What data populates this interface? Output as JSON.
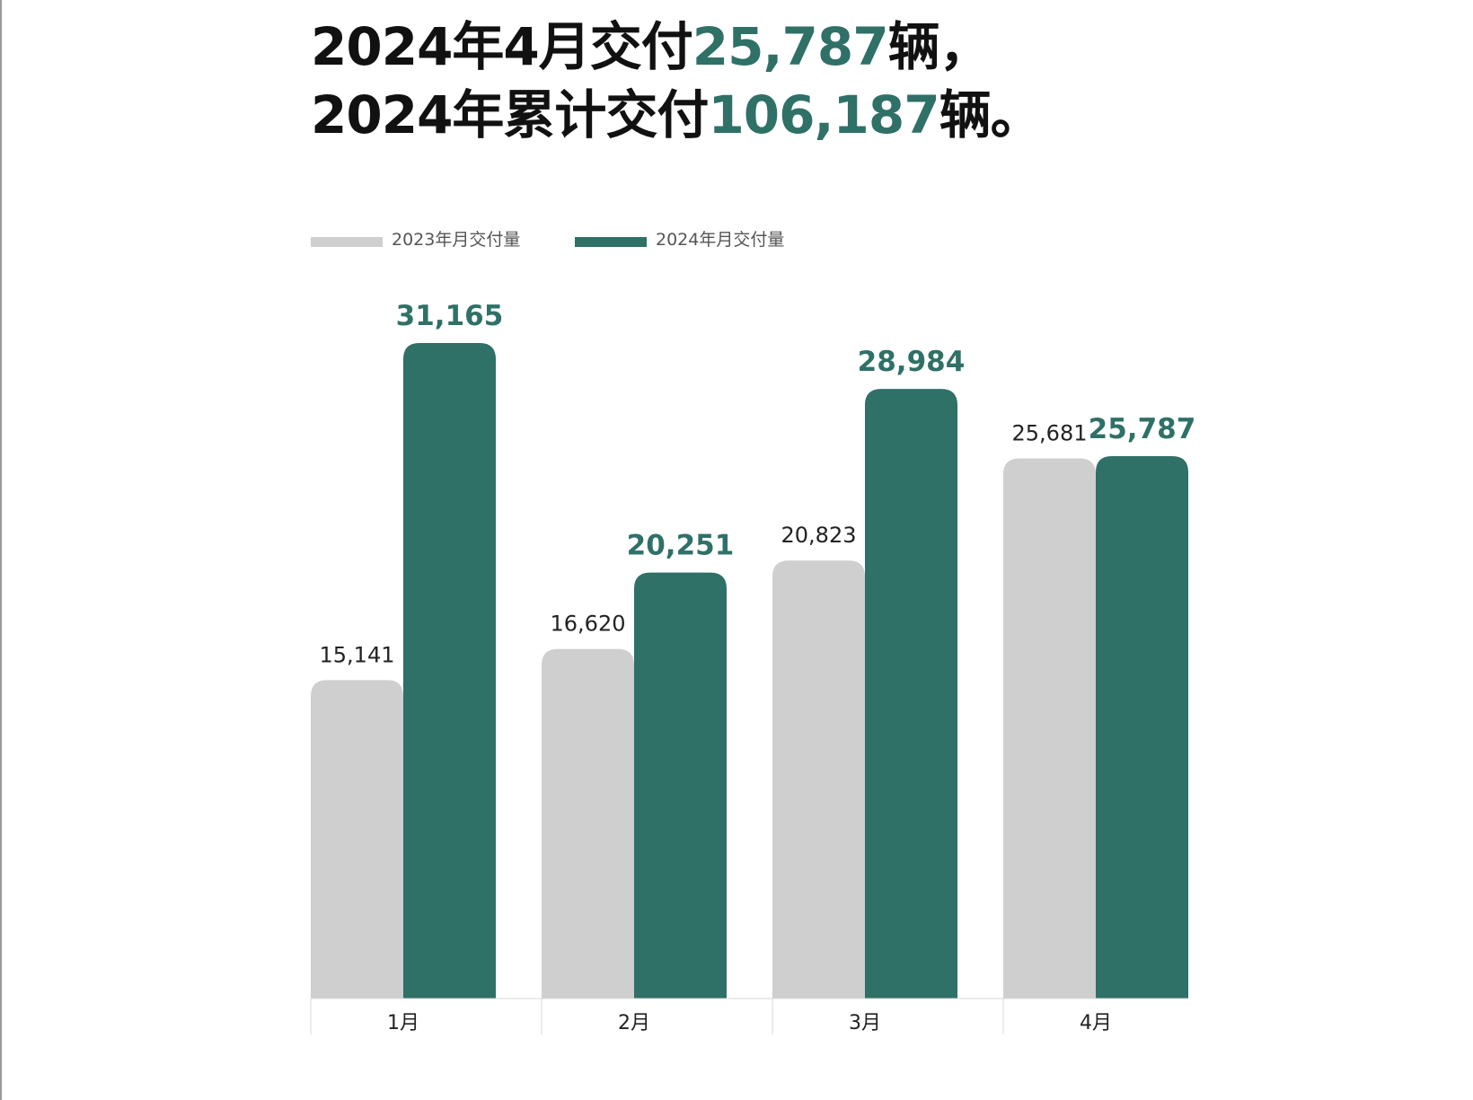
{
  "headline": {
    "line1_prefix": "2024年4月交付",
    "line1_value": "25,787",
    "line1_suffix": "辆，",
    "line2_prefix": "2024年累计交付",
    "line2_value": "106,187",
    "line2_suffix": "辆。"
  },
  "colors": {
    "series2023": "#cfcfcf",
    "series2024": "#2f7067",
    "text": "#111111"
  },
  "chart_data": {
    "type": "bar",
    "categories": [
      "1月",
      "2月",
      "3月",
      "4月"
    ],
    "series": [
      {
        "name": "2023年月交付量",
        "values": [
          15141,
          16620,
          20823,
          25681
        ],
        "labels": [
          "15,141",
          "16,620",
          "20,823",
          "25,681"
        ]
      },
      {
        "name": "2024年月交付量",
        "values": [
          31165,
          20251,
          28984,
          25787
        ],
        "labels": [
          "31,165",
          "20,251",
          "28,984",
          "25,787"
        ]
      }
    ],
    "title": "",
    "xlabel": "",
    "ylabel": "",
    "ylim": [
      0,
      31165
    ],
    "legend": "top-left",
    "grid": false
  }
}
